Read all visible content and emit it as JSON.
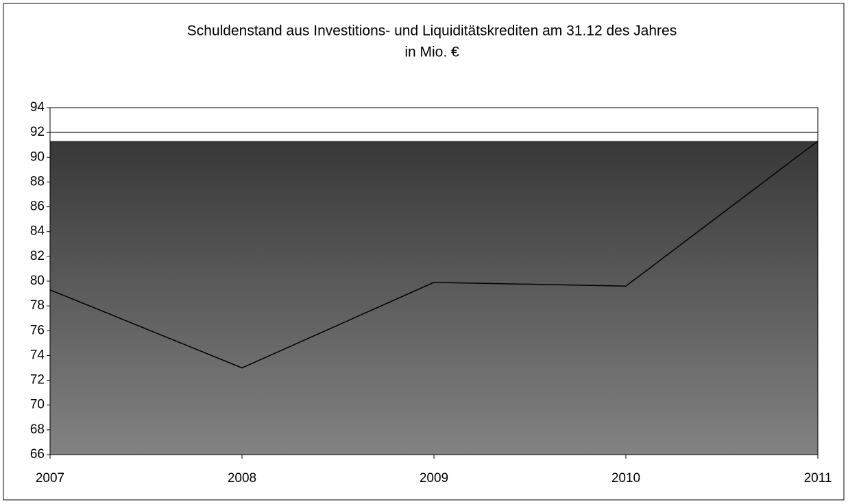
{
  "chart_data": {
    "type": "line",
    "title": "Schuldenstand aus Investitions- und Liquiditätskrediten am 31.12 des Jahres",
    "subtitle": "in Mio. €",
    "categories": [
      "2007",
      "2008",
      "2009",
      "2010",
      "2011"
    ],
    "series": [
      {
        "name": "Schuldenstand",
        "color": "#000000",
        "values": [
          79.3,
          73.0,
          79.9,
          79.6,
          91.3
        ]
      }
    ],
    "ylim": [
      66,
      94
    ],
    "yticks": [
      66,
      68,
      70,
      72,
      74,
      76,
      78,
      80,
      82,
      84,
      86,
      88,
      90,
      92,
      94
    ],
    "grid": true
  }
}
